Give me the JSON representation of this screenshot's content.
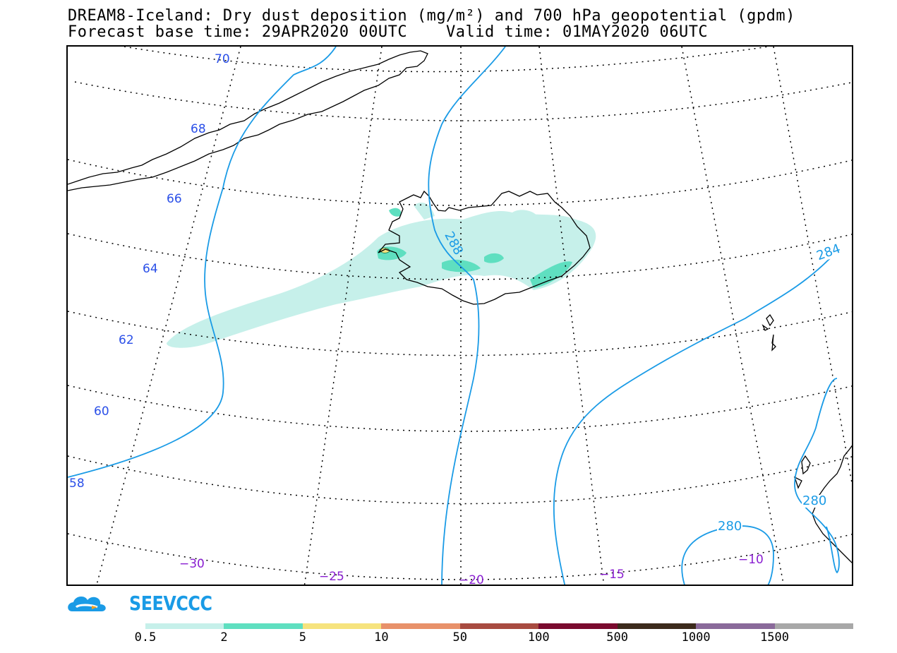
{
  "title": {
    "line1": "DREAM8-Iceland: Dry dust deposition (mg/m²) and 700 hPa geopotential (gpdm)",
    "line2": "Forecast base time: 29APR2020 00UTC    Valid time: 01MAY2020 06UTC"
  },
  "map": {
    "latitude_labels": [
      "70",
      "68",
      "66",
      "64",
      "62",
      "60",
      "58"
    ],
    "longitude_labels": [
      "−30",
      "−25",
      "−20",
      "−15",
      "−10"
    ],
    "contour_labels": [
      "288",
      "284",
      "280",
      "280"
    ],
    "colors": {
      "graticule": "#000000",
      "coastline": "#000000",
      "contour": "#1a9be6",
      "lat_label": "#2a4fe8",
      "lon_label": "#8a1fd1"
    }
  },
  "logo": {
    "text": "SEEVCCC",
    "icon": "cloud-logo-icon"
  },
  "colorbar": {
    "ticks": [
      "0.5",
      "2",
      "5",
      "10",
      "50",
      "100",
      "500",
      "1000",
      "1500"
    ],
    "colors": [
      "#c6f0ea",
      "#5fdfc0",
      "#f6e37e",
      "#e8916a",
      "#a84b40",
      "#7a0a2e",
      "#3c2a1c",
      "#8a6a9a",
      "#a8a8a8"
    ]
  }
}
